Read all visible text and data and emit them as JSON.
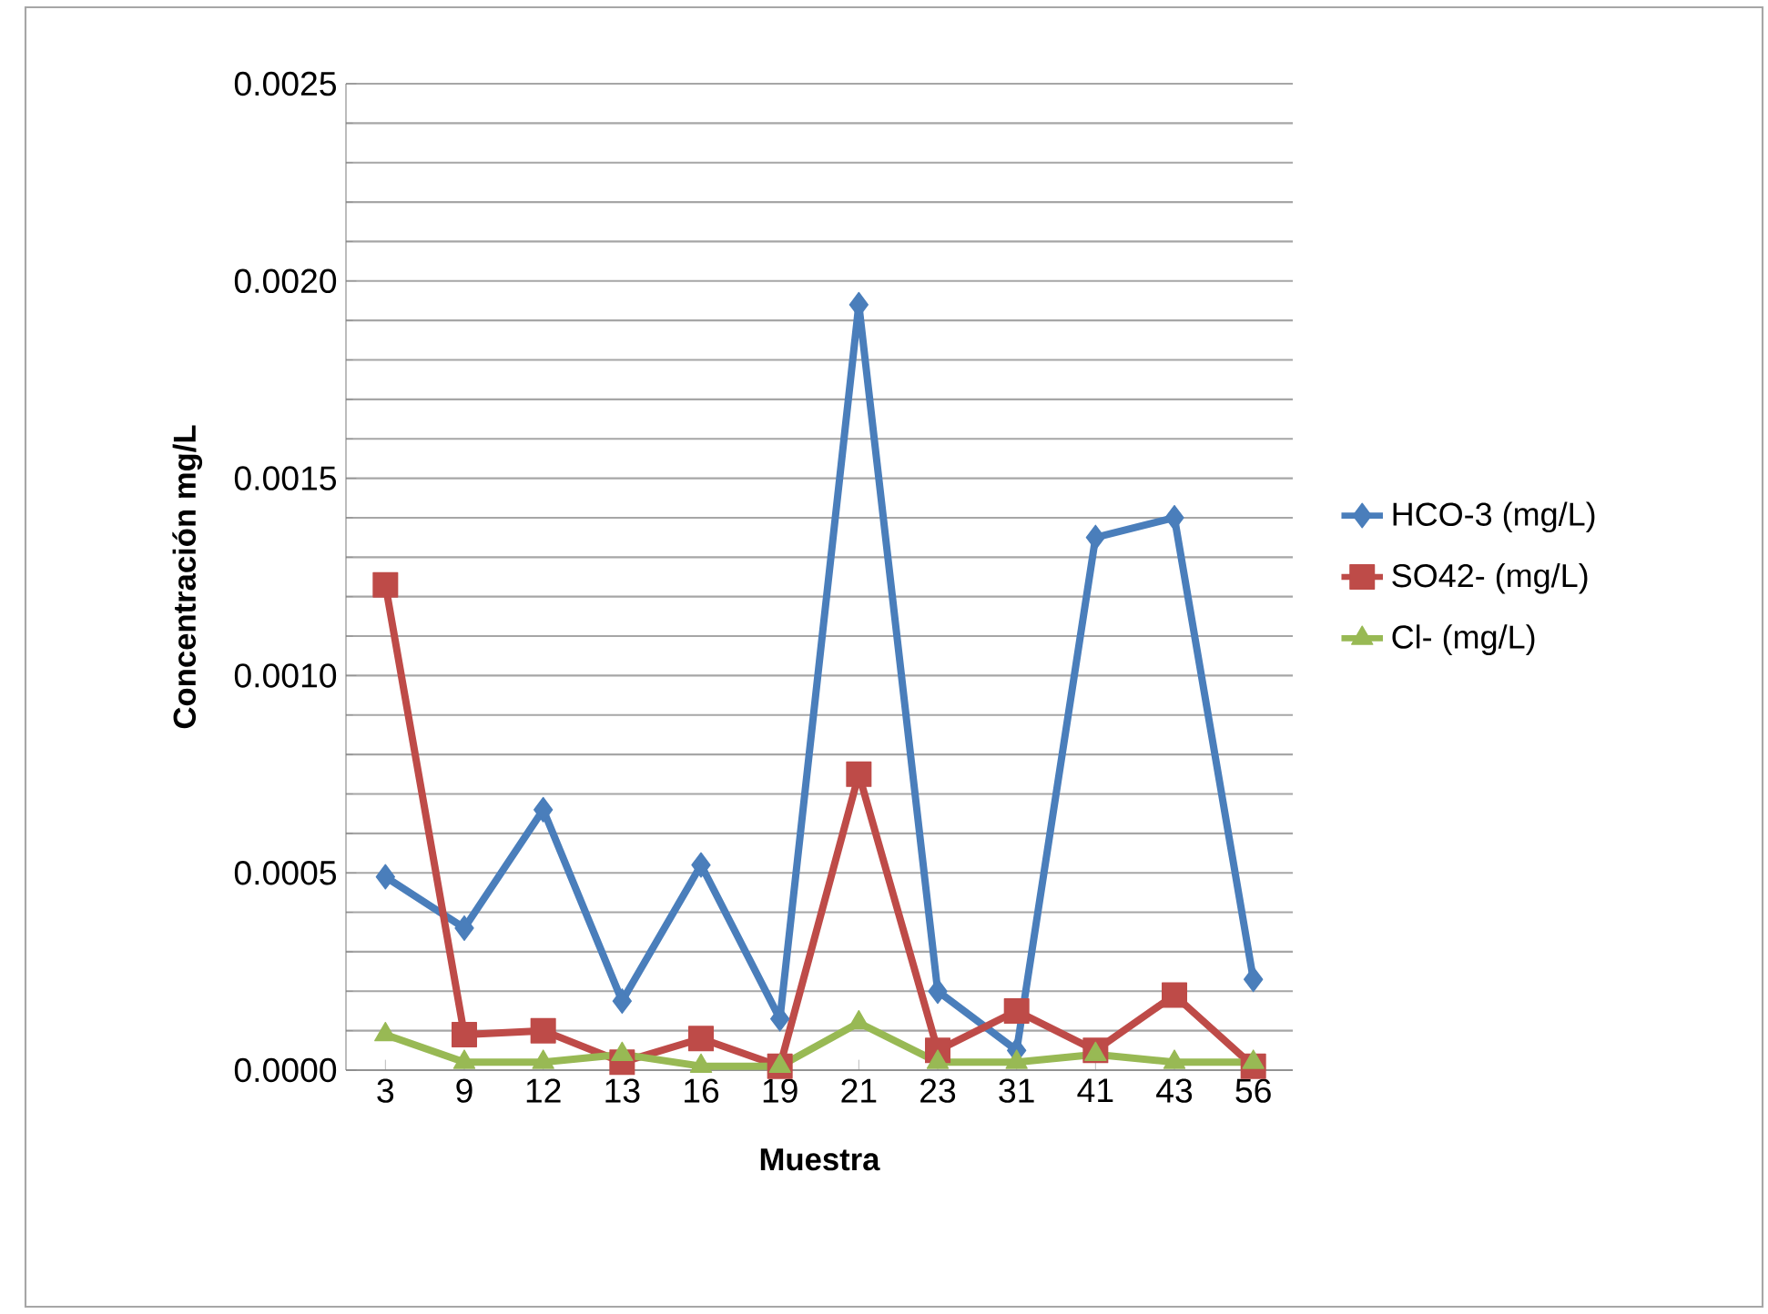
{
  "chart_data": {
    "type": "line",
    "xlabel": "Muestra",
    "ylabel": "Concentración mg/L",
    "categories": [
      "3",
      "9",
      "12",
      "13",
      "16",
      "19",
      "21",
      "23",
      "31",
      "41",
      "43",
      "56"
    ],
    "series": [
      {
        "name": "HCO-3 (mg/L)",
        "color": "#4a7ebb",
        "marker": "diamond",
        "values": [
          0.00049,
          0.00036,
          0.00066,
          0.000175,
          0.00052,
          0.00013,
          0.00194,
          0.0002,
          5e-05,
          0.00135,
          0.0014,
          0.00023
        ]
      },
      {
        "name": "SO42-  (mg/L)",
        "color": "#be4b48",
        "marker": "square",
        "values": [
          0.00123,
          9e-05,
          0.0001,
          2e-05,
          8e-05,
          1e-05,
          0.00075,
          5e-05,
          0.00015,
          5e-05,
          0.00019,
          1e-05
        ]
      },
      {
        "name": "Cl- (mg/L)",
        "color": "#98b954",
        "marker": "triangle",
        "values": [
          9e-05,
          2e-05,
          2e-05,
          4e-05,
          1e-05,
          1e-05,
          0.00012,
          2e-05,
          2e-05,
          4e-05,
          2e-05,
          2e-05
        ]
      }
    ],
    "ylim": [
      0,
      0.0025
    ],
    "yticks": [
      {
        "value": 0,
        "label": "0.0000"
      },
      {
        "value": 0.0005,
        "label": "0.0005"
      },
      {
        "value": 0.001,
        "label": "0.0010"
      },
      {
        "value": 0.0015,
        "label": "0.0015"
      },
      {
        "value": 0.002,
        "label": "0.0020"
      },
      {
        "value": 0.0025,
        "label": "0.0025"
      }
    ],
    "grid": "y",
    "legend": "right",
    "line_style": "solid"
  }
}
